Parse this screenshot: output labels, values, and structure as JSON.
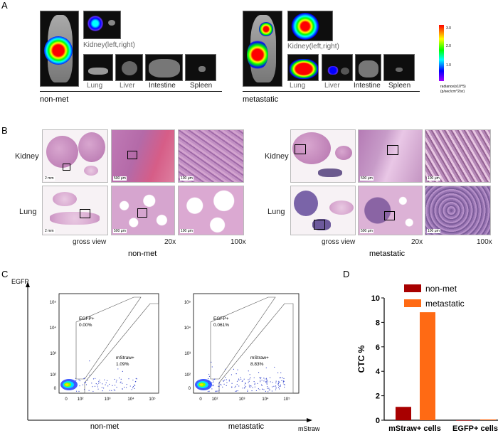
{
  "panels": {
    "a": "A",
    "b": "B",
    "c": "C",
    "d": "D"
  },
  "panel_a": {
    "group1_label": "non-met",
    "group2_label": "metastatic",
    "organs": {
      "kidney": "Kidney(left,right)",
      "lung": "Lung",
      "liver": "Liver",
      "intestine": "Intestine",
      "spleen": "Spleen"
    },
    "colorbar": {
      "ticks": [
        "3.0",
        "2.0",
        "1.0"
      ],
      "label_line1": "radiance(x10^5)",
      "label_line2": "(p/sec/cm^2/sr)",
      "colors": [
        "#ff0000",
        "#ffff00",
        "#00ff00",
        "#00ffff",
        "#0000ff",
        "#a000ff"
      ]
    }
  },
  "panel_b": {
    "row_kidney": "Kidney",
    "row_lung": "Lung",
    "col_gross": "gross view",
    "col_20x": "20x",
    "col_100x": "100x",
    "group1_label": "non-met",
    "group2_label": "metastatic",
    "scale": {
      "gross": "2 mm",
      "mid": "500 μm",
      "high": "100 μm"
    }
  },
  "panel_c": {
    "y_axis": "EGFP",
    "x_axis": "mStraw",
    "x_ticks": [
      "0",
      "10²",
      "10³",
      "10⁴",
      "10⁵"
    ],
    "y_ticks": [
      "10⁵",
      "10⁴",
      "10³",
      "10²",
      "0"
    ],
    "plots": [
      {
        "caption": "non-met",
        "egfp_label": "EGFP+",
        "egfp_value": "0.00%",
        "mstraw_label": "mStraw+",
        "mstraw_value": "1.09%"
      },
      {
        "caption": "metastatic",
        "egfp_label": "EGFP+",
        "egfp_value": "0.061%",
        "mstraw_label": "mStraw+",
        "mstraw_value": "8.83%"
      }
    ]
  },
  "chart_data": {
    "type": "bar",
    "categories": [
      "mStraw+ cells",
      "EGFP+ cells"
    ],
    "series": [
      {
        "name": "non-met",
        "color": "#a80000",
        "values": [
          1.09,
          0.0
        ]
      },
      {
        "name": "metastatic",
        "color": "#ff6a14",
        "values": [
          8.83,
          0.061
        ]
      }
    ],
    "ylabel": "CTC %",
    "ylim": [
      0,
      10
    ],
    "yticks": [
      0,
      2,
      4,
      6,
      8,
      10
    ],
    "legend": "top-right"
  }
}
